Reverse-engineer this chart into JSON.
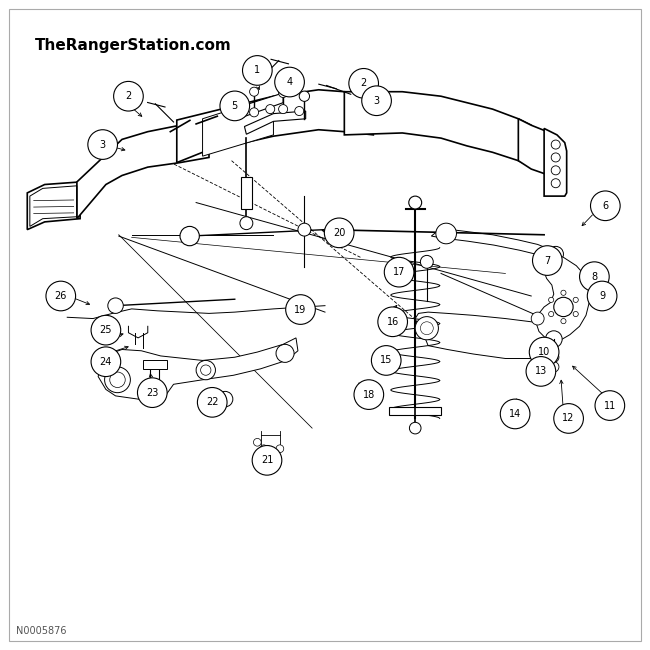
{
  "title": "TheRangerStation.com",
  "part_number": "N0005876",
  "background_color": "#ffffff",
  "line_color": "#000000",
  "callout_font_size": 7,
  "title_font_size": 11,
  "part_number_font_size": 7,
  "callout_data": [
    [
      1,
      0.395,
      0.895
    ],
    [
      2,
      0.195,
      0.855
    ],
    [
      2,
      0.56,
      0.875
    ],
    [
      3,
      0.155,
      0.78
    ],
    [
      3,
      0.58,
      0.848
    ],
    [
      4,
      0.445,
      0.877
    ],
    [
      5,
      0.36,
      0.84
    ],
    [
      6,
      0.935,
      0.685
    ],
    [
      7,
      0.845,
      0.6
    ],
    [
      8,
      0.918,
      0.575
    ],
    [
      9,
      0.93,
      0.545
    ],
    [
      10,
      0.84,
      0.458
    ],
    [
      11,
      0.942,
      0.375
    ],
    [
      12,
      0.878,
      0.355
    ],
    [
      13,
      0.835,
      0.428
    ],
    [
      14,
      0.795,
      0.362
    ],
    [
      15,
      0.595,
      0.445
    ],
    [
      16,
      0.605,
      0.505
    ],
    [
      17,
      0.615,
      0.582
    ],
    [
      18,
      0.568,
      0.392
    ],
    [
      19,
      0.462,
      0.524
    ],
    [
      20,
      0.522,
      0.643
    ],
    [
      21,
      0.41,
      0.29
    ],
    [
      22,
      0.325,
      0.38
    ],
    [
      23,
      0.232,
      0.395
    ],
    [
      24,
      0.16,
      0.443
    ],
    [
      25,
      0.16,
      0.492
    ],
    [
      26,
      0.09,
      0.545
    ]
  ],
  "arrow_lines": [
    [
      0.395,
      0.873,
      0.4,
      0.86
    ],
    [
      0.18,
      0.855,
      0.22,
      0.82
    ],
    [
      0.543,
      0.875,
      0.54,
      0.858
    ],
    [
      0.165,
      0.778,
      0.195,
      0.77
    ],
    [
      0.565,
      0.848,
      0.57,
      0.835
    ],
    [
      0.445,
      0.877,
      0.44,
      0.862
    ],
    [
      0.362,
      0.84,
      0.385,
      0.832
    ],
    [
      0.918,
      0.674,
      0.895,
      0.65
    ],
    [
      0.84,
      0.61,
      0.852,
      0.626
    ],
    [
      0.905,
      0.575,
      0.892,
      0.568
    ],
    [
      0.915,
      0.545,
      0.9,
      0.548
    ],
    [
      0.828,
      0.458,
      0.84,
      0.465
    ],
    [
      0.94,
      0.385,
      0.88,
      0.44
    ],
    [
      0.87,
      0.365,
      0.866,
      0.42
    ],
    [
      0.822,
      0.428,
      0.83,
      0.44
    ],
    [
      0.788,
      0.37,
      0.8,
      0.39
    ],
    [
      0.585,
      0.455,
      0.595,
      0.47
    ],
    [
      0.6,
      0.516,
      0.615,
      0.535
    ],
    [
      0.605,
      0.571,
      0.645,
      0.588
    ],
    [
      0.558,
      0.4,
      0.55,
      0.415
    ],
    [
      0.458,
      0.513,
      0.46,
      0.5
    ],
    [
      0.512,
      0.643,
      0.49,
      0.648
    ],
    [
      0.41,
      0.302,
      0.415,
      0.318
    ],
    [
      0.325,
      0.392,
      0.34,
      0.4
    ],
    [
      0.232,
      0.407,
      0.228,
      0.43
    ],
    [
      0.16,
      0.455,
      0.2,
      0.468
    ],
    [
      0.168,
      0.48,
      0.192,
      0.488
    ],
    [
      0.102,
      0.545,
      0.14,
      0.53
    ]
  ]
}
